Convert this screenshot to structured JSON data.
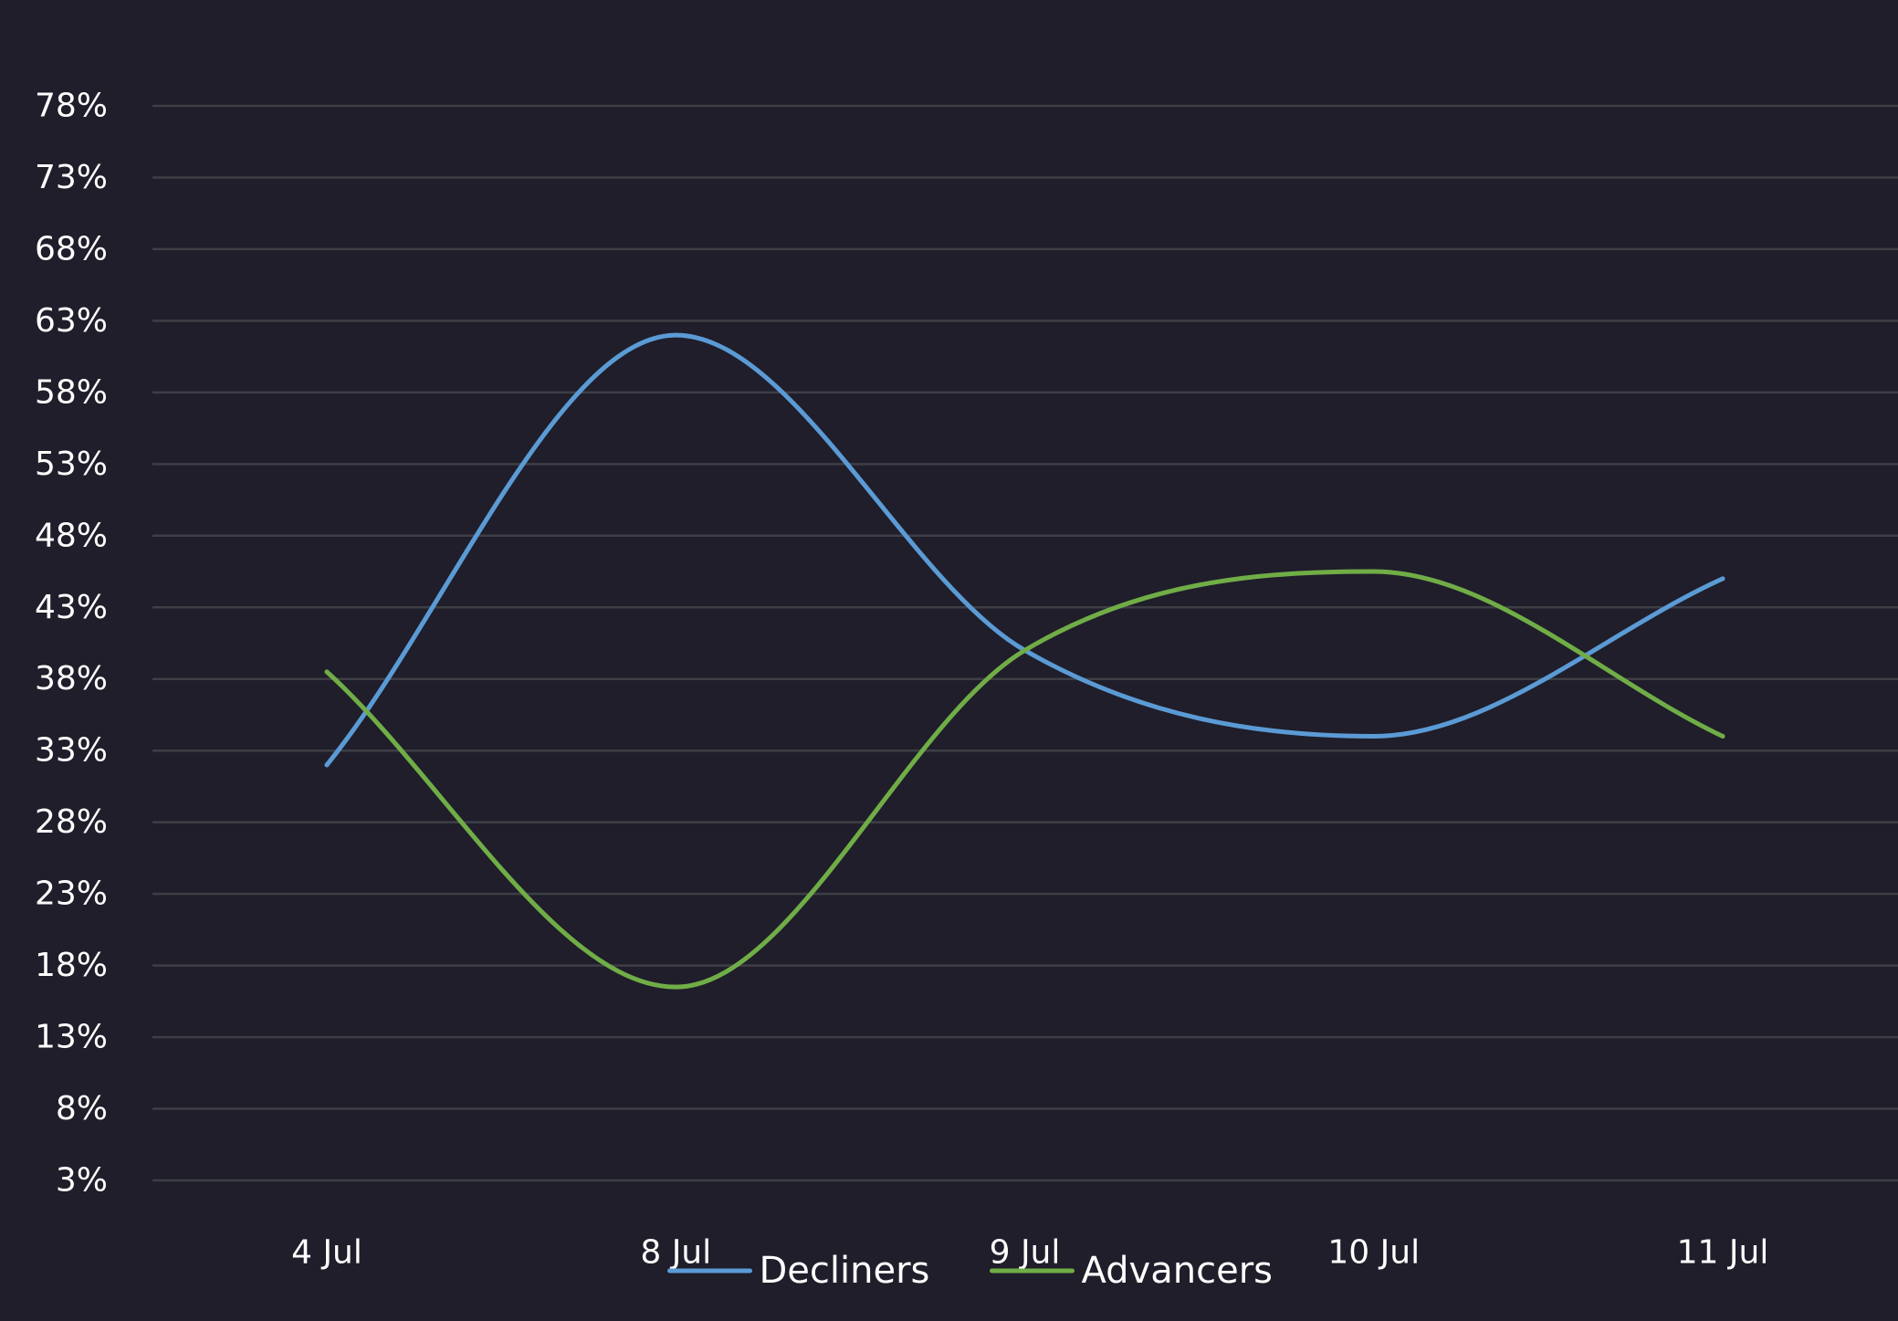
{
  "chart_data": {
    "type": "line",
    "title": "",
    "xlabel": "",
    "ylabel": "",
    "categories": [
      "4 Jul",
      "8 Jul",
      "9 Jul",
      "10 Jul",
      "11 Jul"
    ],
    "y_ticks": [
      "78%",
      "73%",
      "68%",
      "63%",
      "58%",
      "53%",
      "48%",
      "43%",
      "38%",
      "33%",
      "28%",
      "23%",
      "18%",
      "13%",
      "8%",
      "3%"
    ],
    "ylim": [
      3,
      78
    ],
    "y_unit": "%",
    "grid": "horizontal",
    "legend": "bottom-center",
    "smooth": true,
    "series": [
      {
        "name": "Decliners",
        "color": "#5b9bd5",
        "values": [
          32,
          62,
          40,
          34,
          45
        ]
      },
      {
        "name": "Advancers",
        "color": "#70ad47",
        "values": [
          38.5,
          16.5,
          40,
          45.5,
          34
        ]
      }
    ],
    "colors": {
      "background": "#1f1e2a",
      "grid": "#3e3e46",
      "text": "#ffffff"
    }
  }
}
